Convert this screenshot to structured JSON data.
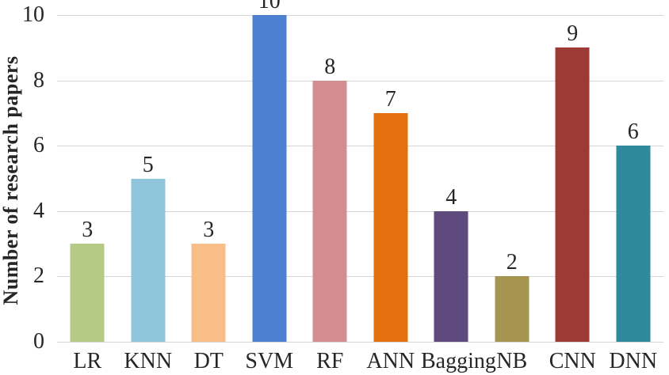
{
  "figure": {
    "background": "#ffffff",
    "text_color": "#262626",
    "gridline_color": "#d6d6d6"
  },
  "chart_data": {
    "type": "bar",
    "title": "",
    "xlabel": "",
    "ylabel": "Number of research papers",
    "categories": [
      "LR",
      "KNN",
      "DT",
      "SVM",
      "RF",
      "ANN",
      "Bagging",
      "NB",
      "CNN",
      "DNN"
    ],
    "values": [
      3,
      5,
      3,
      10,
      8,
      7,
      4,
      2,
      9,
      6
    ],
    "bar_colors": [
      "#b5ca85",
      "#8ec5da",
      "#f9bd88",
      "#4e80d1",
      "#d48e93",
      "#e46f0e",
      "#5e4a7c",
      "#a59551",
      "#9d3a35",
      "#2f899c"
    ],
    "ylim": [
      0,
      10
    ],
    "yticks": [
      0,
      2,
      4,
      6,
      8,
      10
    ],
    "grid": true,
    "legend": "none",
    "data_labels": true
  }
}
